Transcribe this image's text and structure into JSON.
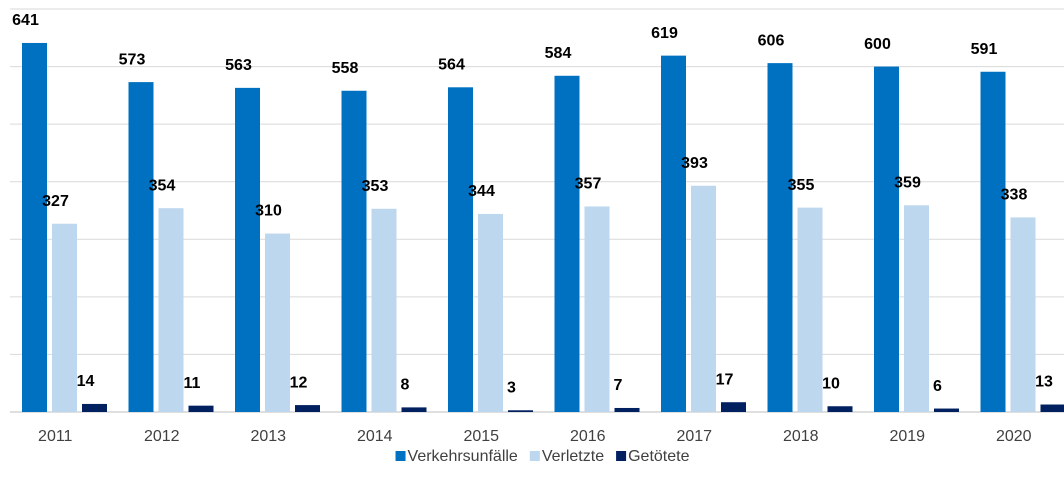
{
  "chart_data": {
    "type": "bar",
    "categories": [
      "2011",
      "2012",
      "2013",
      "2014",
      "2015",
      "2016",
      "2017",
      "2018",
      "2019",
      "2020"
    ],
    "series": [
      {
        "name": "Verkehrsunfälle",
        "color": "#0070c0",
        "values": [
          641,
          573,
          563,
          558,
          564,
          584,
          619,
          606,
          600,
          591
        ]
      },
      {
        "name": "Verletzte",
        "color": "#bdd7ee",
        "values": [
          327,
          354,
          310,
          353,
          344,
          357,
          393,
          355,
          359,
          338
        ]
      },
      {
        "name": "Getötete",
        "color": "#002060",
        "values": [
          14,
          11,
          12,
          8,
          3,
          7,
          17,
          10,
          6,
          13
        ]
      }
    ],
    "ylim": [
      0,
      700
    ],
    "yticks": [
      0,
      100,
      200,
      300,
      400,
      500,
      600,
      700
    ],
    "grid": true,
    "legend": "bottom"
  }
}
